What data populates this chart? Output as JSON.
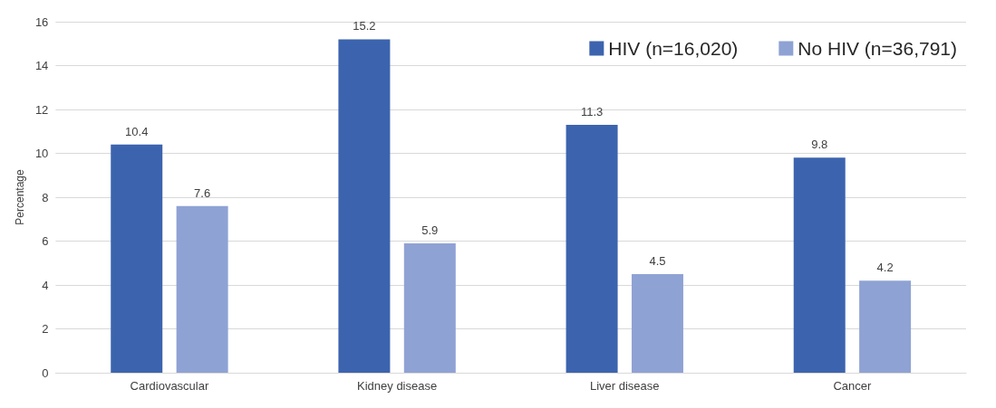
{
  "chart_data": {
    "type": "bar",
    "ylabel": "Percentage",
    "categories": [
      "Cardiovascular",
      "Kidney disease",
      "Liver disease",
      "Cancer"
    ],
    "series": [
      {
        "name": "HIV (n=16,020)",
        "color": "#3c64ae",
        "values": [
          10.4,
          15.2,
          11.3,
          9.8
        ]
      },
      {
        "name": "No HIV (n=36,791)",
        "color": "#8fa2d4",
        "values": [
          7.6,
          5.9,
          4.5,
          4.2
        ]
      }
    ],
    "ylim": [
      0,
      16
    ],
    "yticks": [
      0,
      2,
      4,
      6,
      8,
      10,
      12,
      14,
      16
    ],
    "grid": "y",
    "legend": "top right",
    "data_labels": true
  }
}
